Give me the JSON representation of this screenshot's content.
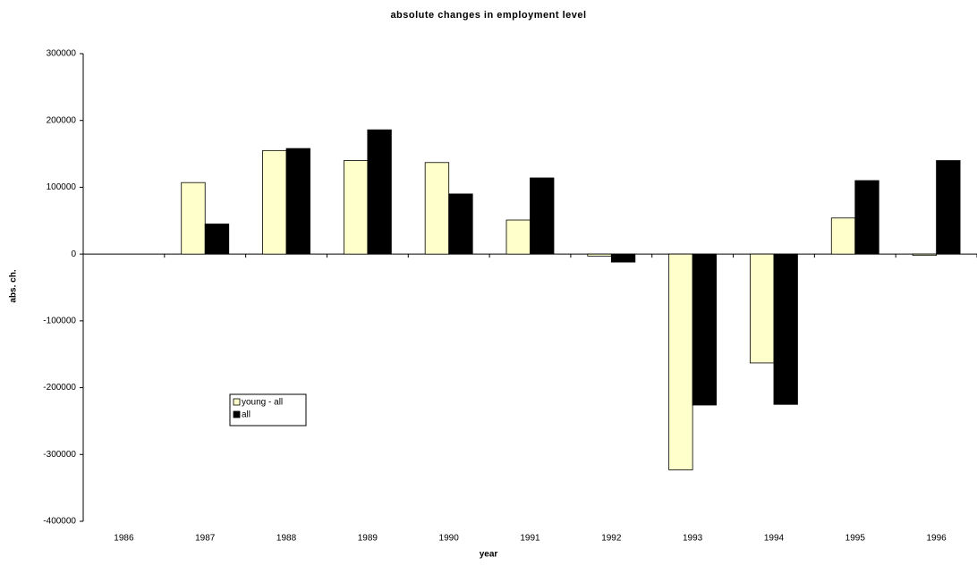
{
  "chart_data": {
    "type": "bar",
    "title": "absolute changes in employment level",
    "x_label": "year",
    "y_label": "abs. ch.",
    "categories": [
      "1986",
      "1987",
      "1988",
      "1989",
      "1990",
      "1991",
      "1992",
      "1993",
      "1994",
      "1995",
      "1996"
    ],
    "series": [
      {
        "name": "young - all",
        "color": "#ffffcc",
        "values": [
          null,
          107000,
          155000,
          140000,
          137000,
          51000,
          -3000,
          -323000,
          -163000,
          54000,
          -2000
        ]
      },
      {
        "name": "all",
        "color": "#000000",
        "values": [
          null,
          45000,
          158000,
          186000,
          90000,
          114000,
          -12000,
          -226000,
          -225000,
          110000,
          140000
        ]
      }
    ],
    "ylim": [
      -400000,
      300000
    ],
    "yticks": [
      -400000,
      -300000,
      -200000,
      -100000,
      0,
      100000,
      200000,
      300000
    ],
    "grid": false
  }
}
